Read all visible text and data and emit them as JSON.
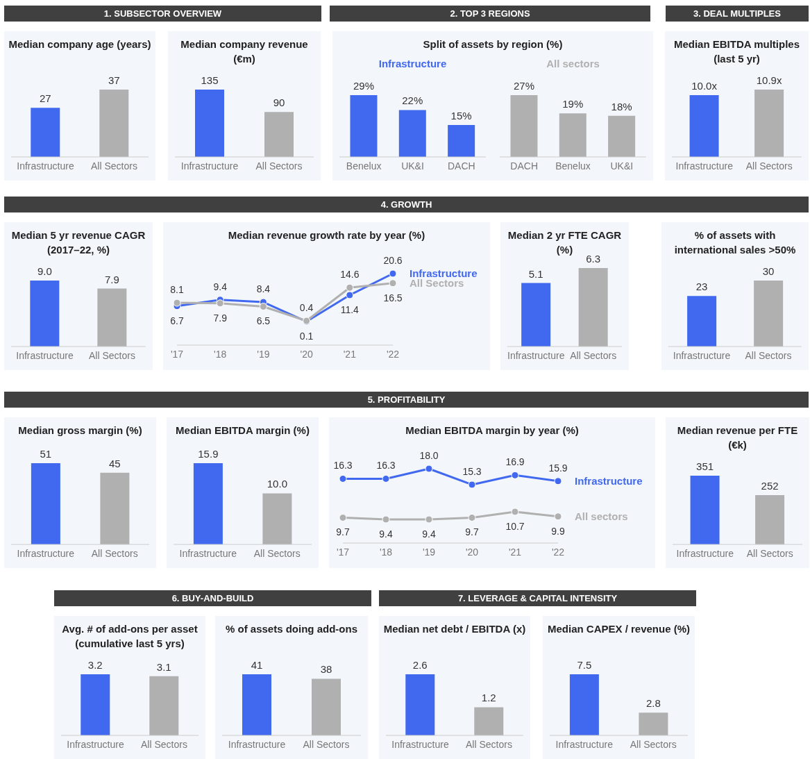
{
  "chart_data": [
    {
      "type": "other",
      "title": "1. SUBSECTOR OVERVIEW"
    },
    {
      "type": "bar",
      "title": "Median company age (years)",
      "categories": [
        "Infrastructure",
        "All Sectors"
      ],
      "values": [
        27,
        37
      ],
      "colors": [
        "#4169f0",
        "#b0b0b0"
      ],
      "data_labels": true,
      "legend": false
    },
    {
      "type": "bar",
      "title": "Median company revenue (€m)",
      "categories": [
        "Infrastructure",
        "All Sectors"
      ],
      "values": [
        135,
        90
      ],
      "colors": [
        "#4169f0",
        "#b0b0b0"
      ],
      "data_labels": true,
      "legend": false
    },
    {
      "type": "other",
      "title": "2. TOP 3 REGIONS"
    },
    {
      "type": "bar",
      "title": "Split of assets by region (%)",
      "categories": [
        "Benelux",
        "UK&I",
        "DACH"
      ],
      "legend": "top",
      "series": [
        {
          "name": "Infrastructure",
          "color": "#4169f0",
          "values": [
            29,
            22,
            15
          ],
          "value_labels": [
            "29%",
            "22%",
            "15%"
          ]
        }
      ]
    },
    {
      "type": "bar",
      "categories": [
        "DACH",
        "Benelux",
        "UK&I"
      ],
      "legend": "top",
      "series": [
        {
          "name": "All sectors",
          "color": "#b0b0b0",
          "values": [
            27,
            19,
            18
          ],
          "value_labels": [
            "27%",
            "19%",
            "18%"
          ]
        }
      ]
    },
    {
      "type": "other",
      "title": "3. DEAL MULTIPLES"
    },
    {
      "type": "bar",
      "title": "Median EBITDA multiples (last 5 yr)",
      "categories": [
        "Infrastructure",
        "All Sectors"
      ],
      "values": [
        10.0,
        10.9
      ],
      "colors": [
        "#4169f0",
        "#b0b0b0"
      ],
      "value_labels": [
        "10.0x",
        "10.9x"
      ],
      "legend": false
    },
    {
      "type": "other",
      "title": "4. GROWTH"
    },
    {
      "type": "bar",
      "title": "Median 5 yr revenue CAGR (2017–22, %)",
      "categories": [
        "Infrastructure",
        "All Sectors"
      ],
      "values": [
        9.0,
        7.9
      ],
      "colors": [
        "#4169f0",
        "#b0b0b0"
      ],
      "value_labels": [
        "9.0",
        "7.9"
      ],
      "legend": false
    },
    {
      "type": "line",
      "title": "Median revenue growth rate by year (%)",
      "categories": [
        "'17",
        "'18",
        "'19",
        "'20",
        "'21",
        "'22"
      ],
      "legend": "right",
      "marker": "circle",
      "data_labels": true,
      "series": [
        {
          "name": "Infrastructure",
          "color": "#4169f0",
          "values": [
            6.7,
            9.4,
            8.4,
            0.1,
            11.4,
            20.6
          ]
        },
        {
          "name": "All Sectors",
          "color": "#b0b0b0",
          "values": [
            8.1,
            7.9,
            6.5,
            0.4,
            14.6,
            16.5
          ]
        }
      ]
    },
    {
      "type": "bar",
      "title": "Median 2 yr FTE CAGR (%)",
      "categories": [
        "Infrastructure",
        "All Sectors"
      ],
      "values": [
        5.1,
        6.3
      ],
      "colors": [
        "#4169f0",
        "#b0b0b0"
      ],
      "data_labels": true,
      "legend": false
    },
    {
      "type": "bar",
      "title": "% of assets with international sales >50%",
      "categories": [
        "Infrastructure",
        "All Sectors"
      ],
      "values": [
        23,
        30
      ],
      "colors": [
        "#4169f0",
        "#b0b0b0"
      ],
      "data_labels": true,
      "legend": false
    },
    {
      "type": "other",
      "title": "5.  PROFITABILITY"
    },
    {
      "type": "bar",
      "title": "Median gross margin (%)",
      "categories": [
        "Infrastructure",
        "All Sectors"
      ],
      "values": [
        51,
        45
      ],
      "colors": [
        "#4169f0",
        "#b0b0b0"
      ],
      "data_labels": true,
      "legend": false
    },
    {
      "type": "bar",
      "title": "Median EBITDA margin (%)",
      "categories": [
        "Infrastructure",
        "All Sectors"
      ],
      "values": [
        15.9,
        10.0
      ],
      "colors": [
        "#4169f0",
        "#b0b0b0"
      ],
      "value_labels": [
        "15.9",
        "10.0"
      ],
      "legend": false
    },
    {
      "type": "line",
      "title": "Median EBITDA margin by year (%)",
      "categories": [
        "'17",
        "'18",
        "'19",
        "'20",
        "'21",
        "'22"
      ],
      "legend": "right",
      "marker": "circle",
      "series": [
        {
          "name": "Infrastructure",
          "color": "#4169f0",
          "values": [
            16.3,
            16.3,
            18.0,
            15.3,
            16.9,
            15.9
          ],
          "value_labels": [
            "16.3",
            "16.3",
            "18.0",
            "15.3",
            "16.9",
            "15.9"
          ]
        },
        {
          "name": "All sectors",
          "color": "#b0b0b0",
          "values": [
            9.7,
            9.4,
            9.4,
            9.7,
            10.7,
            9.9
          ],
          "value_labels": [
            "9.7",
            "9.4",
            "9.4",
            "9.7",
            "10.7",
            "9.9"
          ]
        }
      ]
    },
    {
      "type": "bar",
      "title": "Median revenue per FTE (€k)",
      "categories": [
        "Infrastructure",
        "All Sectors"
      ],
      "values": [
        351,
        252
      ],
      "colors": [
        "#4169f0",
        "#b0b0b0"
      ],
      "data_labels": true,
      "legend": false
    },
    {
      "type": "other",
      "title": "6. BUY-AND-BUILD"
    },
    {
      "type": "bar",
      "title": "Avg. # of add-ons per asset (cumulative last 5 yrs)",
      "categories": [
        "Infrastructure",
        "All Sectors"
      ],
      "values": [
        3.2,
        3.1
      ],
      "colors": [
        "#4169f0",
        "#b0b0b0"
      ],
      "data_labels": true,
      "legend": false
    },
    {
      "type": "bar",
      "title": "% of assets doing add-ons",
      "categories": [
        "Infrastructure",
        "All Sectors"
      ],
      "values": [
        41,
        38
      ],
      "colors": [
        "#4169f0",
        "#b0b0b0"
      ],
      "data_labels": true,
      "legend": false
    },
    {
      "type": "other",
      "title": "7. LEVERAGE & CAPITAL INTENSITY"
    },
    {
      "type": "bar",
      "title": "Median net debt / EBITDA (x)",
      "categories": [
        "Infrastructure",
        "All Sectors"
      ],
      "values": [
        2.6,
        1.2
      ],
      "colors": [
        "#4169f0",
        "#b0b0b0"
      ],
      "data_labels": true,
      "legend": false
    },
    {
      "type": "bar",
      "title": "Median CAPEX / revenue (%)",
      "categories": [
        "Infrastructure",
        "All Sectors"
      ],
      "values": [
        7.5,
        2.8
      ],
      "colors": [
        "#4169f0",
        "#b0b0b0"
      ],
      "data_labels": true,
      "legend": false
    }
  ]
}
